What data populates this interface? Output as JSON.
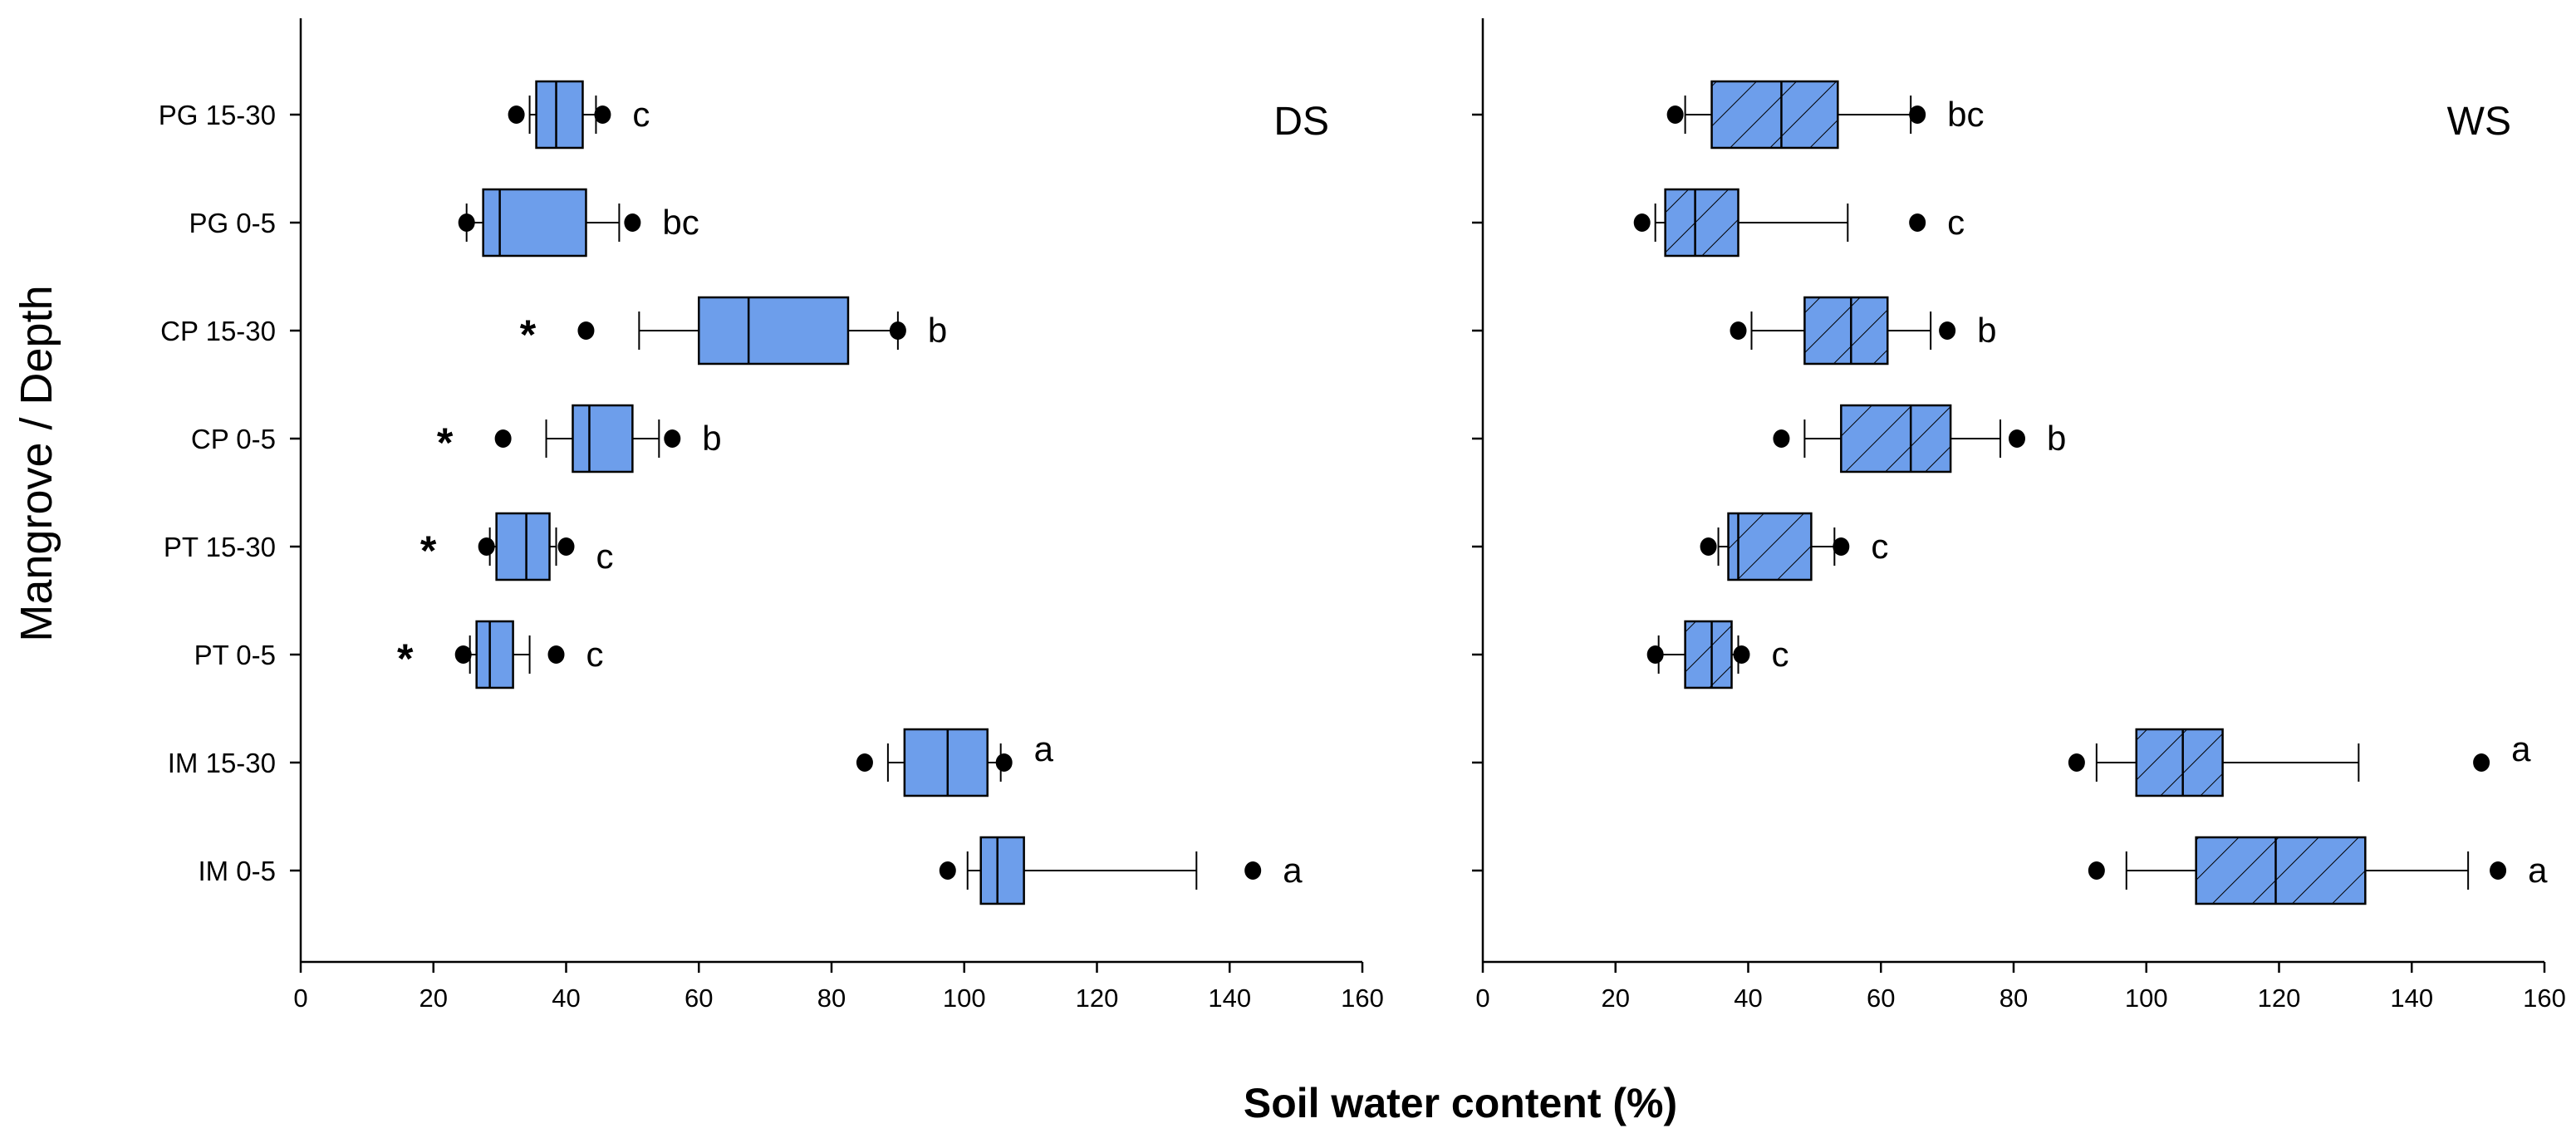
{
  "chart_data": {
    "type": "boxplot",
    "xlabel": "Soil water content (%)",
    "ylabel": "Mangrove / Depth",
    "xlim": [
      0,
      160
    ],
    "x_ticks": [
      0,
      20,
      40,
      60,
      80,
      100,
      120,
      140,
      160
    ],
    "categories": [
      "PG 15-30",
      "PG 0-5",
      "CP 15-30",
      "CP 0-5",
      "PT 15-30",
      "PT 0-5",
      "IM 15-30",
      "IM 0-5"
    ],
    "box_color": "#6d9eeb",
    "panels": [
      {
        "label": "DS",
        "hatched": false,
        "boxes": [
          {
            "category": "PG 15-30",
            "whisker_low": 34.5,
            "q1": 35.5,
            "median": 38.5,
            "q3": 42.5,
            "whisker_high": 44.5,
            "outliers": [
              32.5,
              45.5
            ],
            "letter": "c",
            "star": false
          },
          {
            "category": "PG 0-5",
            "whisker_low": 25,
            "q1": 27.5,
            "median": 30,
            "q3": 43,
            "whisker_high": 48,
            "outliers": [
              25,
              50
            ],
            "letter": "bc",
            "star": false
          },
          {
            "category": "CP 15-30",
            "whisker_low": 51,
            "q1": 60,
            "median": 67.5,
            "q3": 82.5,
            "whisker_high": 90,
            "outliers": [
              43,
              90
            ],
            "letter": "b",
            "star": true
          },
          {
            "category": "CP 0-5",
            "whisker_low": 37,
            "q1": 41,
            "median": 43.5,
            "q3": 50,
            "whisker_high": 54,
            "outliers": [
              30.5,
              56
            ],
            "letter": "b",
            "star": true
          },
          {
            "category": "PT 15-30",
            "whisker_low": 28.5,
            "q1": 29.5,
            "median": 34,
            "q3": 37.5,
            "whisker_high": 38.5,
            "outliers": [
              28,
              40
            ],
            "letter": "c",
            "star": true
          },
          {
            "category": "PT 0-5",
            "whisker_low": 25.5,
            "q1": 26.5,
            "median": 28.5,
            "q3": 32,
            "whisker_high": 34.5,
            "outliers": [
              24.5,
              38.5
            ],
            "letter": "c",
            "star": true
          },
          {
            "category": "IM 15-30",
            "whisker_low": 88.5,
            "q1": 91,
            "median": 97.5,
            "q3": 103.5,
            "whisker_high": 105.5,
            "outliers": [
              85,
              106
            ],
            "letter": "a",
            "star": false
          },
          {
            "category": "IM 0-5",
            "whisker_low": 100.5,
            "q1": 102.5,
            "median": 105,
            "q3": 109,
            "whisker_high": 135,
            "outliers": [
              97.5,
              143.5
            ],
            "letter": "a",
            "star": false
          }
        ]
      },
      {
        "label": "WS",
        "hatched": true,
        "boxes": [
          {
            "category": "PG 15-30",
            "whisker_low": 30.5,
            "q1": 34.5,
            "median": 45,
            "q3": 53.5,
            "whisker_high": 64.5,
            "outliers": [
              29,
              65.5
            ],
            "letter": "bc"
          },
          {
            "category": "PG 0-5",
            "whisker_low": 26,
            "q1": 27.5,
            "median": 32,
            "q3": 38.5,
            "whisker_high": 55,
            "outliers": [
              24,
              65.5
            ],
            "letter": "c"
          },
          {
            "category": "CP 15-30",
            "whisker_low": 40.5,
            "q1": 48.5,
            "median": 55.5,
            "q3": 61,
            "whisker_high": 67.5,
            "outliers": [
              38.5,
              70
            ],
            "letter": "b"
          },
          {
            "category": "CP 0-5",
            "whisker_low": 48.5,
            "q1": 54,
            "median": 64.5,
            "q3": 70.5,
            "whisker_high": 78,
            "outliers": [
              45,
              80.5
            ],
            "letter": "b"
          },
          {
            "category": "PT 15-30",
            "whisker_low": 35.5,
            "q1": 37,
            "median": 38.5,
            "q3": 49.5,
            "whisker_high": 53,
            "outliers": [
              34,
              54
            ],
            "letter": "c"
          },
          {
            "category": "PT 0-5",
            "whisker_low": 26.5,
            "q1": 30.5,
            "median": 34.5,
            "q3": 37.5,
            "whisker_high": 38.5,
            "outliers": [
              26,
              39
            ],
            "letter": "c"
          },
          {
            "category": "IM 15-30",
            "whisker_low": 92.5,
            "q1": 98.5,
            "median": 105.5,
            "q3": 111.5,
            "whisker_high": 132,
            "outliers": [
              89.5,
              150.5
            ],
            "letter": "a"
          },
          {
            "category": "IM 0-5",
            "whisker_low": 97,
            "q1": 107.5,
            "median": 119.5,
            "q3": 133,
            "whisker_high": 148.5,
            "outliers": [
              92.5,
              153
            ],
            "letter": "a"
          }
        ]
      }
    ]
  }
}
